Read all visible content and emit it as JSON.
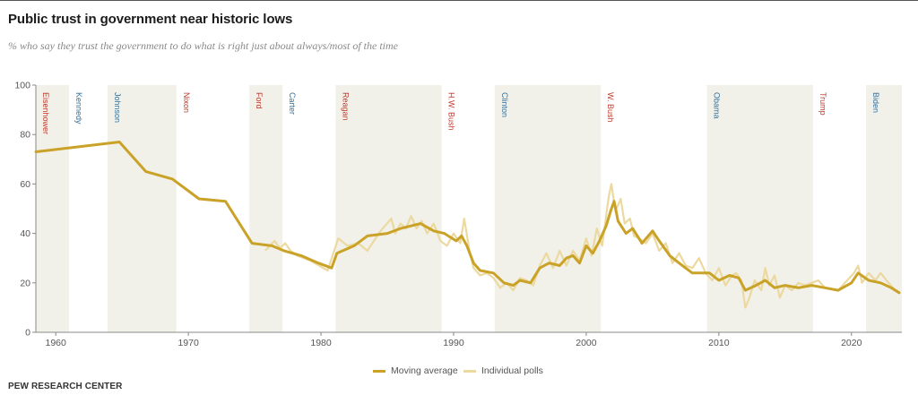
{
  "title": "Public trust in government near historic lows",
  "subtitle": "% who say they trust the government to do what is right just about always/most of the time",
  "source": "PEW RESEARCH CENTER",
  "colors": {
    "moving_average": "#c9a227",
    "individual_polls": "#ecd9a0",
    "republican_label": "#c0392b",
    "democrat_label": "#34709c",
    "shade": "#f1f1ea",
    "axis": "#888888"
  },
  "chart_data": {
    "type": "line",
    "title": "Public trust in government near historic lows",
    "subtitle": "% who say they trust the government to do what is right just about always/most of the time",
    "xlim": [
      1958.5,
      2023.8
    ],
    "ylim": [
      0,
      100
    ],
    "x_ticks": [
      1960,
      1970,
      1980,
      1990,
      2000,
      2010,
      2020
    ],
    "y_ticks": [
      0,
      20,
      40,
      60,
      80,
      100
    ],
    "grid": false,
    "legend": {
      "position": "bottom",
      "entries": [
        "Moving average",
        "Individual polls"
      ]
    },
    "presidents": [
      {
        "name": "Eisenhower",
        "party": "R",
        "start": 1958.5,
        "end": 1961.0,
        "shaded": true
      },
      {
        "name": "Kennedy",
        "party": "D",
        "start": 1961.0,
        "end": 1963.9,
        "shaded": false
      },
      {
        "name": "Johnson",
        "party": "D",
        "start": 1963.9,
        "end": 1969.1,
        "shaded": true
      },
      {
        "name": "Nixon",
        "party": "R",
        "start": 1969.1,
        "end": 1974.6,
        "shaded": false
      },
      {
        "name": "Ford",
        "party": "R",
        "start": 1974.6,
        "end": 1977.1,
        "shaded": true
      },
      {
        "name": "Carter",
        "party": "D",
        "start": 1977.1,
        "end": 1981.1,
        "shaded": false
      },
      {
        "name": "Reagan",
        "party": "R",
        "start": 1981.1,
        "end": 1989.1,
        "shaded": true
      },
      {
        "name": "H.W. Bush",
        "party": "R",
        "start": 1989.1,
        "end": 1993.1,
        "shaded": false
      },
      {
        "name": "Clinton",
        "party": "D",
        "start": 1993.1,
        "end": 2001.1,
        "shaded": true
      },
      {
        "name": "W. Bush",
        "party": "R",
        "start": 2001.1,
        "end": 2009.1,
        "shaded": false
      },
      {
        "name": "Obama",
        "party": "D",
        "start": 2009.1,
        "end": 2017.1,
        "shaded": true
      },
      {
        "name": "Trump",
        "party": "R",
        "start": 2017.1,
        "end": 2021.1,
        "shaded": false
      },
      {
        "name": "Biden",
        "party": "D",
        "start": 2021.1,
        "end": 2023.8,
        "shaded": true
      }
    ],
    "series": [
      {
        "name": "Moving average",
        "points": [
          [
            1958.5,
            73
          ],
          [
            1964.8,
            77
          ],
          [
            1966.8,
            65
          ],
          [
            1968.8,
            62
          ],
          [
            1970.8,
            54
          ],
          [
            1972.8,
            53
          ],
          [
            1974.8,
            36
          ],
          [
            1976.3,
            35
          ],
          [
            1977.2,
            33
          ],
          [
            1978.5,
            31
          ],
          [
            1979.8,
            28
          ],
          [
            1980.8,
            26
          ],
          [
            1981.2,
            32
          ],
          [
            1982.5,
            35
          ],
          [
            1983.5,
            39
          ],
          [
            1985.0,
            40
          ],
          [
            1986.0,
            42
          ],
          [
            1987.5,
            44
          ],
          [
            1988.5,
            41
          ],
          [
            1989.3,
            40
          ],
          [
            1990.2,
            37
          ],
          [
            1990.6,
            39
          ],
          [
            1991.0,
            35
          ],
          [
            1991.5,
            28
          ],
          [
            1992.0,
            25
          ],
          [
            1993.0,
            24
          ],
          [
            1993.8,
            20
          ],
          [
            1994.5,
            19
          ],
          [
            1995.0,
            21
          ],
          [
            1995.8,
            20
          ],
          [
            1996.5,
            26
          ],
          [
            1997.2,
            28
          ],
          [
            1998.0,
            27
          ],
          [
            1998.5,
            30
          ],
          [
            1999.0,
            31
          ],
          [
            1999.5,
            28
          ],
          [
            2000.0,
            35
          ],
          [
            2000.5,
            32
          ],
          [
            2001.0,
            37
          ],
          [
            2001.5,
            43
          ],
          [
            2001.9,
            50
          ],
          [
            2002.1,
            53
          ],
          [
            2002.4,
            45
          ],
          [
            2003.0,
            40
          ],
          [
            2003.5,
            42
          ],
          [
            2004.2,
            36
          ],
          [
            2005.0,
            41
          ],
          [
            2005.5,
            37
          ],
          [
            2006.3,
            31
          ],
          [
            2007.0,
            28
          ],
          [
            2008.0,
            24
          ],
          [
            2009.3,
            24
          ],
          [
            2010.0,
            21
          ],
          [
            2010.8,
            23
          ],
          [
            2011.5,
            22
          ],
          [
            2012.0,
            17
          ],
          [
            2012.8,
            19
          ],
          [
            2013.5,
            21
          ],
          [
            2014.2,
            18
          ],
          [
            2015.0,
            19
          ],
          [
            2016.0,
            18
          ],
          [
            2017.0,
            19
          ],
          [
            2018.0,
            18
          ],
          [
            2019.0,
            17
          ],
          [
            2020.0,
            20
          ],
          [
            2020.5,
            24
          ],
          [
            2021.3,
            21
          ],
          [
            2022.2,
            20
          ],
          [
            2023.0,
            18
          ],
          [
            2023.6,
            16
          ]
        ]
      },
      {
        "name": "Individual polls",
        "points": [
          [
            1975.8,
            33
          ],
          [
            1976.5,
            37
          ],
          [
            1976.9,
            34
          ],
          [
            1977.3,
            36
          ],
          [
            1977.7,
            33
          ],
          [
            1978.2,
            31
          ],
          [
            1979.2,
            29
          ],
          [
            1980.5,
            25
          ],
          [
            1981.3,
            38
          ],
          [
            1982.0,
            35
          ],
          [
            1982.8,
            36
          ],
          [
            1983.5,
            33
          ],
          [
            1984.5,
            41
          ],
          [
            1985.3,
            46
          ],
          [
            1985.6,
            40
          ],
          [
            1986.0,
            44
          ],
          [
            1986.4,
            42
          ],
          [
            1986.8,
            47
          ],
          [
            1987.2,
            42
          ],
          [
            1987.6,
            45
          ],
          [
            1988.0,
            40
          ],
          [
            1988.5,
            44
          ],
          [
            1989.0,
            37
          ],
          [
            1989.5,
            35
          ],
          [
            1990.0,
            40
          ],
          [
            1990.5,
            36
          ],
          [
            1990.8,
            46
          ],
          [
            1991.2,
            33
          ],
          [
            1991.5,
            26
          ],
          [
            1992.0,
            23
          ],
          [
            1992.5,
            24
          ],
          [
            1993.0,
            22
          ],
          [
            1993.5,
            18
          ],
          [
            1994.0,
            20
          ],
          [
            1994.5,
            17
          ],
          [
            1995.0,
            22
          ],
          [
            1995.5,
            21
          ],
          [
            1996.0,
            19
          ],
          [
            1996.5,
            27
          ],
          [
            1997.0,
            32
          ],
          [
            1997.5,
            26
          ],
          [
            1998.0,
            33
          ],
          [
            1998.5,
            27
          ],
          [
            1999.0,
            33
          ],
          [
            1999.5,
            29
          ],
          [
            2000.0,
            38
          ],
          [
            2000.4,
            31
          ],
          [
            2000.8,
            42
          ],
          [
            2001.2,
            35
          ],
          [
            2001.7,
            55
          ],
          [
            2001.9,
            60
          ],
          [
            2002.2,
            49
          ],
          [
            2002.6,
            54
          ],
          [
            2002.9,
            44
          ],
          [
            2003.3,
            46
          ],
          [
            2003.6,
            39
          ],
          [
            2004.0,
            38
          ],
          [
            2004.5,
            36
          ],
          [
            2005.0,
            40
          ],
          [
            2005.5,
            33
          ],
          [
            2006.0,
            36
          ],
          [
            2006.5,
            28
          ],
          [
            2007.0,
            32
          ],
          [
            2007.5,
            27
          ],
          [
            2008.0,
            26
          ],
          [
            2008.5,
            30
          ],
          [
            2009.0,
            24
          ],
          [
            2009.5,
            21
          ],
          [
            2010.0,
            26
          ],
          [
            2010.5,
            19
          ],
          [
            2011.0,
            23
          ],
          [
            2011.3,
            24
          ],
          [
            2011.7,
            21
          ],
          [
            2012.0,
            10
          ],
          [
            2012.3,
            14
          ],
          [
            2012.7,
            21
          ],
          [
            2013.2,
            17
          ],
          [
            2013.5,
            26
          ],
          [
            2013.8,
            19
          ],
          [
            2014.2,
            23
          ],
          [
            2014.6,
            14
          ],
          [
            2015.0,
            19
          ],
          [
            2015.5,
            17
          ],
          [
            2016.0,
            20
          ],
          [
            2016.5,
            19
          ],
          [
            2017.0,
            20
          ],
          [
            2017.5,
            21
          ],
          [
            2018.0,
            18
          ],
          [
            2019.0,
            17
          ],
          [
            2019.5,
            20
          ],
          [
            2020.2,
            24
          ],
          [
            2020.5,
            27
          ],
          [
            2020.8,
            20
          ],
          [
            2021.3,
            24
          ],
          [
            2021.8,
            21
          ],
          [
            2022.2,
            24
          ],
          [
            2022.8,
            20
          ],
          [
            2023.3,
            17
          ]
        ]
      }
    ]
  }
}
